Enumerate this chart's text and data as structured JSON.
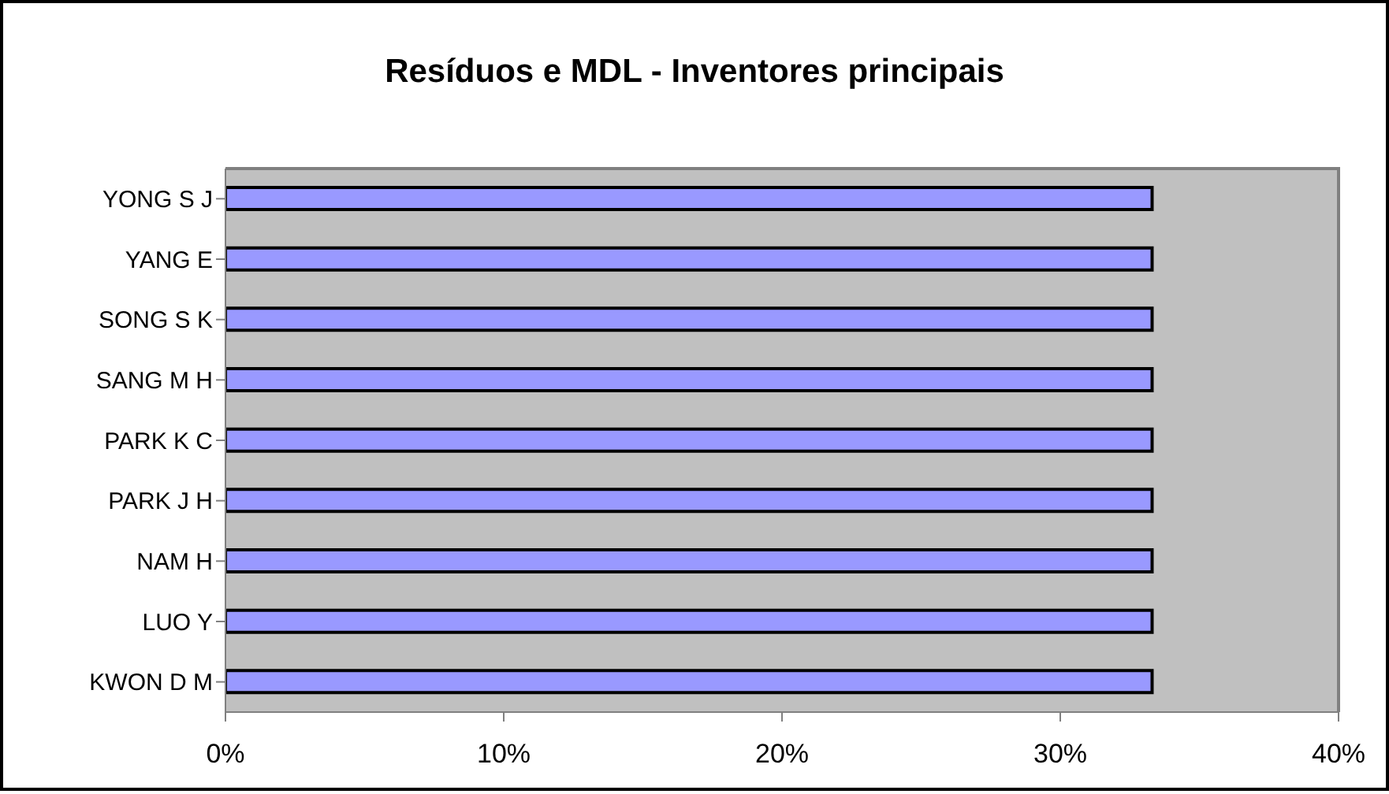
{
  "chart_data": {
    "type": "bar",
    "orientation": "horizontal",
    "title": "Resíduos e MDL - Inventores principais",
    "categories": [
      "YONG S J",
      "YANG E",
      "SONG S K",
      "SANG M H",
      "PARK K C",
      "PARK J H",
      "NAM H",
      "LUO Y",
      "KWON D M"
    ],
    "values": [
      33.3,
      33.3,
      33.3,
      33.3,
      33.3,
      33.3,
      33.3,
      33.3,
      33.3
    ],
    "color": "#9999ff",
    "xlim": [
      0,
      40
    ],
    "xticks": [
      {
        "value": 0,
        "label": "0%"
      },
      {
        "value": 10,
        "label": "10%"
      },
      {
        "value": 20,
        "label": "20%"
      },
      {
        "value": 30,
        "label": "30%"
      },
      {
        "value": 40,
        "label": "40%"
      }
    ],
    "grid": false,
    "legend": false
  }
}
